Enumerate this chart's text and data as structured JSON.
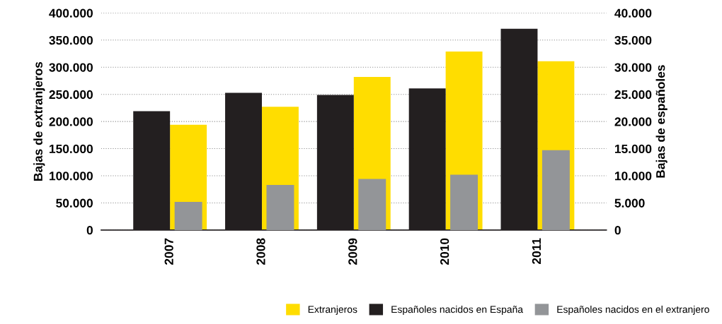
{
  "chart_data": {
    "type": "bar",
    "ylabel": "Bajas de extranjeros",
    "y2label": "Bajas de españoles",
    "categories": [
      "2007",
      "2008",
      "2009",
      "2010",
      "2011"
    ],
    "series": [
      {
        "name": "Extranjeros",
        "color": "#ffdd00",
        "values": [
          194000,
          227000,
          282000,
          329000,
          311000
        ]
      },
      {
        "name": "Españoles nacidos en España",
        "color": "#231f20",
        "axis": "y2",
        "values": [
          21900,
          25300,
          24900,
          26100,
          37100
        ]
      },
      {
        "name": "Españoles nacidos en el extranjero",
        "color": "#939598",
        "axis": "y2",
        "values": [
          5200,
          8300,
          9400,
          10200,
          14700
        ]
      }
    ],
    "ylim": [
      0,
      400000
    ],
    "yticks": [
      {
        "value": 0,
        "label": "0"
      },
      {
        "value": 50000,
        "label": "50.000"
      },
      {
        "value": 100000,
        "label": "100.000"
      },
      {
        "value": 150000,
        "label": "150.000"
      },
      {
        "value": 200000,
        "label": "200.000"
      },
      {
        "value": 250000,
        "label": "250.000"
      },
      {
        "value": 300000,
        "label": "300.000"
      },
      {
        "value": 350000,
        "label": "350.000"
      },
      {
        "value": 400000,
        "label": "400.000"
      }
    ],
    "y2lim": [
      0,
      40000
    ],
    "y2ticks": [
      {
        "value": 0,
        "label": "0"
      },
      {
        "value": 5000,
        "label": "5.000"
      },
      {
        "value": 10000,
        "label": "10.000"
      },
      {
        "value": 15000,
        "label": "15.000"
      },
      {
        "value": 20000,
        "label": "20.000"
      },
      {
        "value": 25000,
        "label": "25.000"
      },
      {
        "value": 30000,
        "label": "30.000"
      },
      {
        "value": 35000,
        "label": "35.000"
      },
      {
        "value": 40000,
        "label": "40.000"
      }
    ],
    "grid": "y",
    "legend": "bottom right"
  }
}
